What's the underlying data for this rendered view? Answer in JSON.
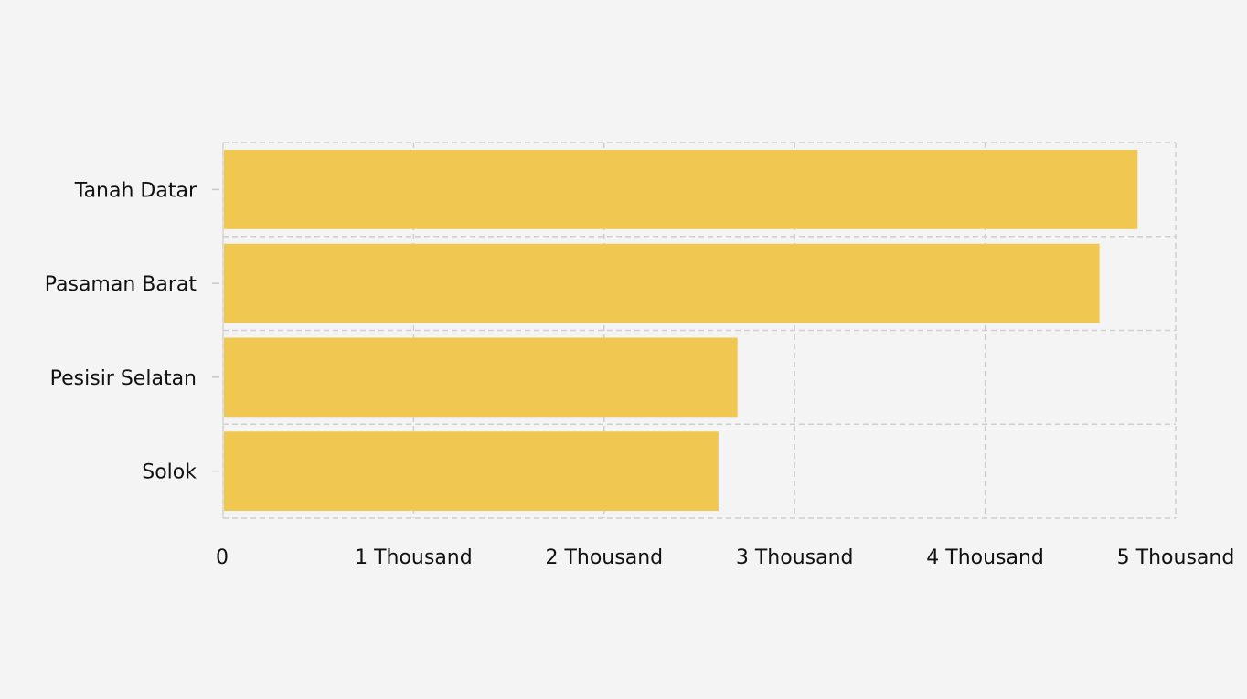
{
  "chart_data": {
    "type": "bar",
    "orientation": "horizontal",
    "categories": [
      "Tanah Datar",
      "Pasaman Barat",
      "Pesisir Selatan",
      "Solok"
    ],
    "values": [
      4800,
      4600,
      2700,
      2600
    ],
    "xlim": [
      0,
      5000
    ],
    "x_ticks": [
      0,
      1000,
      2000,
      3000,
      4000,
      5000
    ],
    "x_tick_labels": [
      "0",
      "1 Thousand",
      "2 Thousand",
      "3 Thousand",
      "4 Thousand",
      "5 Thousand"
    ],
    "title": "",
    "xlabel": "",
    "ylabel": "",
    "grid": true,
    "legend": "none",
    "colors": {
      "bar": "#f0c751",
      "background": "#f4f4f4",
      "grid": "#cfcfcf"
    }
  }
}
